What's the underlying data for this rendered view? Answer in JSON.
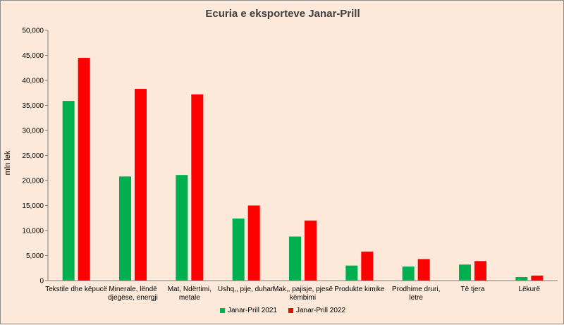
{
  "chart_data": {
    "type": "bar",
    "title": "Ecuria e eksporteve Janar-Prill",
    "ylabel": "mln lek",
    "xlabel": "",
    "ylim": [
      0,
      50000
    ],
    "yticks": [
      "0",
      "5,000",
      "10,000",
      "15,000",
      "20,000",
      "25,000",
      "30,000",
      "35,000",
      "40,000",
      "45,000",
      "50,000"
    ],
    "categories": [
      [
        "Tekstile dhe këpucë"
      ],
      [
        "Minerale, lëndë",
        "djegëse, energji"
      ],
      [
        "Mat, Ndërtimi,",
        "metale"
      ],
      [
        "Ushq,, pije, duhan"
      ],
      [
        "Mak,, pajisje, pjesë",
        "këmbimi"
      ],
      [
        "Produkte kimike"
      ],
      [
        "Prodhime druri,",
        "letre"
      ],
      [
        "Të tjera"
      ],
      [
        "Lëkurë"
      ]
    ],
    "series": [
      {
        "name": "Janar-Prill 2021",
        "color": "#00b050",
        "values": [
          35900,
          20800,
          21100,
          12400,
          8800,
          3000,
          2800,
          3200,
          700
        ]
      },
      {
        "name": "Janar-Prill 2022",
        "color": "#ff0000",
        "values": [
          44500,
          38300,
          37200,
          15000,
          12000,
          5800,
          4300,
          3900,
          1000
        ]
      }
    ],
    "grid": false,
    "legend": "bottom"
  }
}
